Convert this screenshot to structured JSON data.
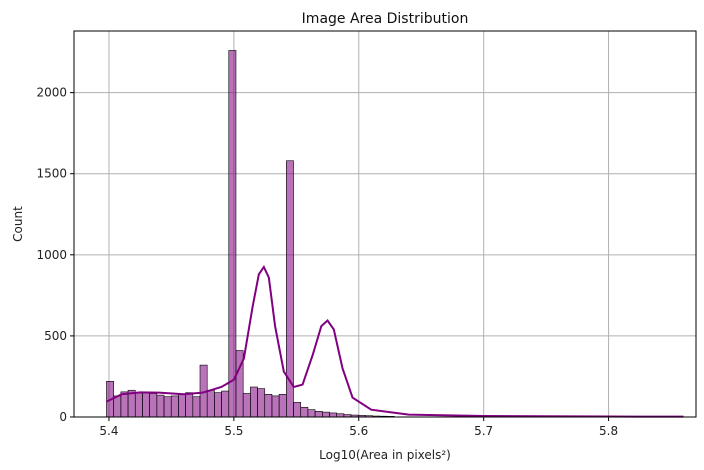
{
  "chart_data": {
    "type": "bar",
    "title": "Image Area Distribution",
    "xlabel": "Log10(Area in pixels²)",
    "ylabel": "Count",
    "xlim": [
      5.372,
      5.87
    ],
    "ylim": [
      0,
      2380
    ],
    "grid": true,
    "bar_color": "#800080",
    "kde_color": "#800080",
    "xticks": [
      {
        "value": 5.4,
        "label": "5.4"
      },
      {
        "value": 5.5,
        "label": "5.5"
      },
      {
        "value": 5.6,
        "label": "5.6"
      },
      {
        "value": 5.7,
        "label": "5.7"
      },
      {
        "value": 5.8,
        "label": "5.8"
      }
    ],
    "yticks": [
      {
        "value": 0,
        "label": "0"
      },
      {
        "value": 500,
        "label": "500"
      },
      {
        "value": 1000,
        "label": "1000"
      },
      {
        "value": 1500,
        "label": "1500"
      },
      {
        "value": 2000,
        "label": "2000"
      }
    ],
    "bin_start": 5.398,
    "bin_width": 0.00576,
    "histogram_counts": [
      220,
      130,
      155,
      165,
      150,
      150,
      145,
      135,
      125,
      130,
      140,
      150,
      125,
      320,
      165,
      150,
      160,
      2260,
      410,
      145,
      185,
      175,
      140,
      130,
      140,
      1580,
      90,
      60,
      45,
      35,
      30,
      25,
      20,
      15,
      12,
      10,
      8,
      6,
      5,
      4
    ],
    "kde": [
      {
        "x": 5.398,
        "y": 95
      },
      {
        "x": 5.41,
        "y": 140
      },
      {
        "x": 5.425,
        "y": 152
      },
      {
        "x": 5.44,
        "y": 150
      },
      {
        "x": 5.46,
        "y": 140
      },
      {
        "x": 5.475,
        "y": 150
      },
      {
        "x": 5.49,
        "y": 185
      },
      {
        "x": 5.5,
        "y": 230
      },
      {
        "x": 5.508,
        "y": 360
      },
      {
        "x": 5.515,
        "y": 680
      },
      {
        "x": 5.52,
        "y": 880
      },
      {
        "x": 5.524,
        "y": 925
      },
      {
        "x": 5.528,
        "y": 860
      },
      {
        "x": 5.533,
        "y": 560
      },
      {
        "x": 5.54,
        "y": 280
      },
      {
        "x": 5.548,
        "y": 185
      },
      {
        "x": 5.555,
        "y": 200
      },
      {
        "x": 5.563,
        "y": 380
      },
      {
        "x": 5.57,
        "y": 560
      },
      {
        "x": 5.575,
        "y": 595
      },
      {
        "x": 5.58,
        "y": 540
      },
      {
        "x": 5.587,
        "y": 300
      },
      {
        "x": 5.595,
        "y": 120
      },
      {
        "x": 5.61,
        "y": 45
      },
      {
        "x": 5.64,
        "y": 15
      },
      {
        "x": 5.7,
        "y": 6
      },
      {
        "x": 5.8,
        "y": 3
      },
      {
        "x": 5.86,
        "y": 2
      }
    ]
  }
}
